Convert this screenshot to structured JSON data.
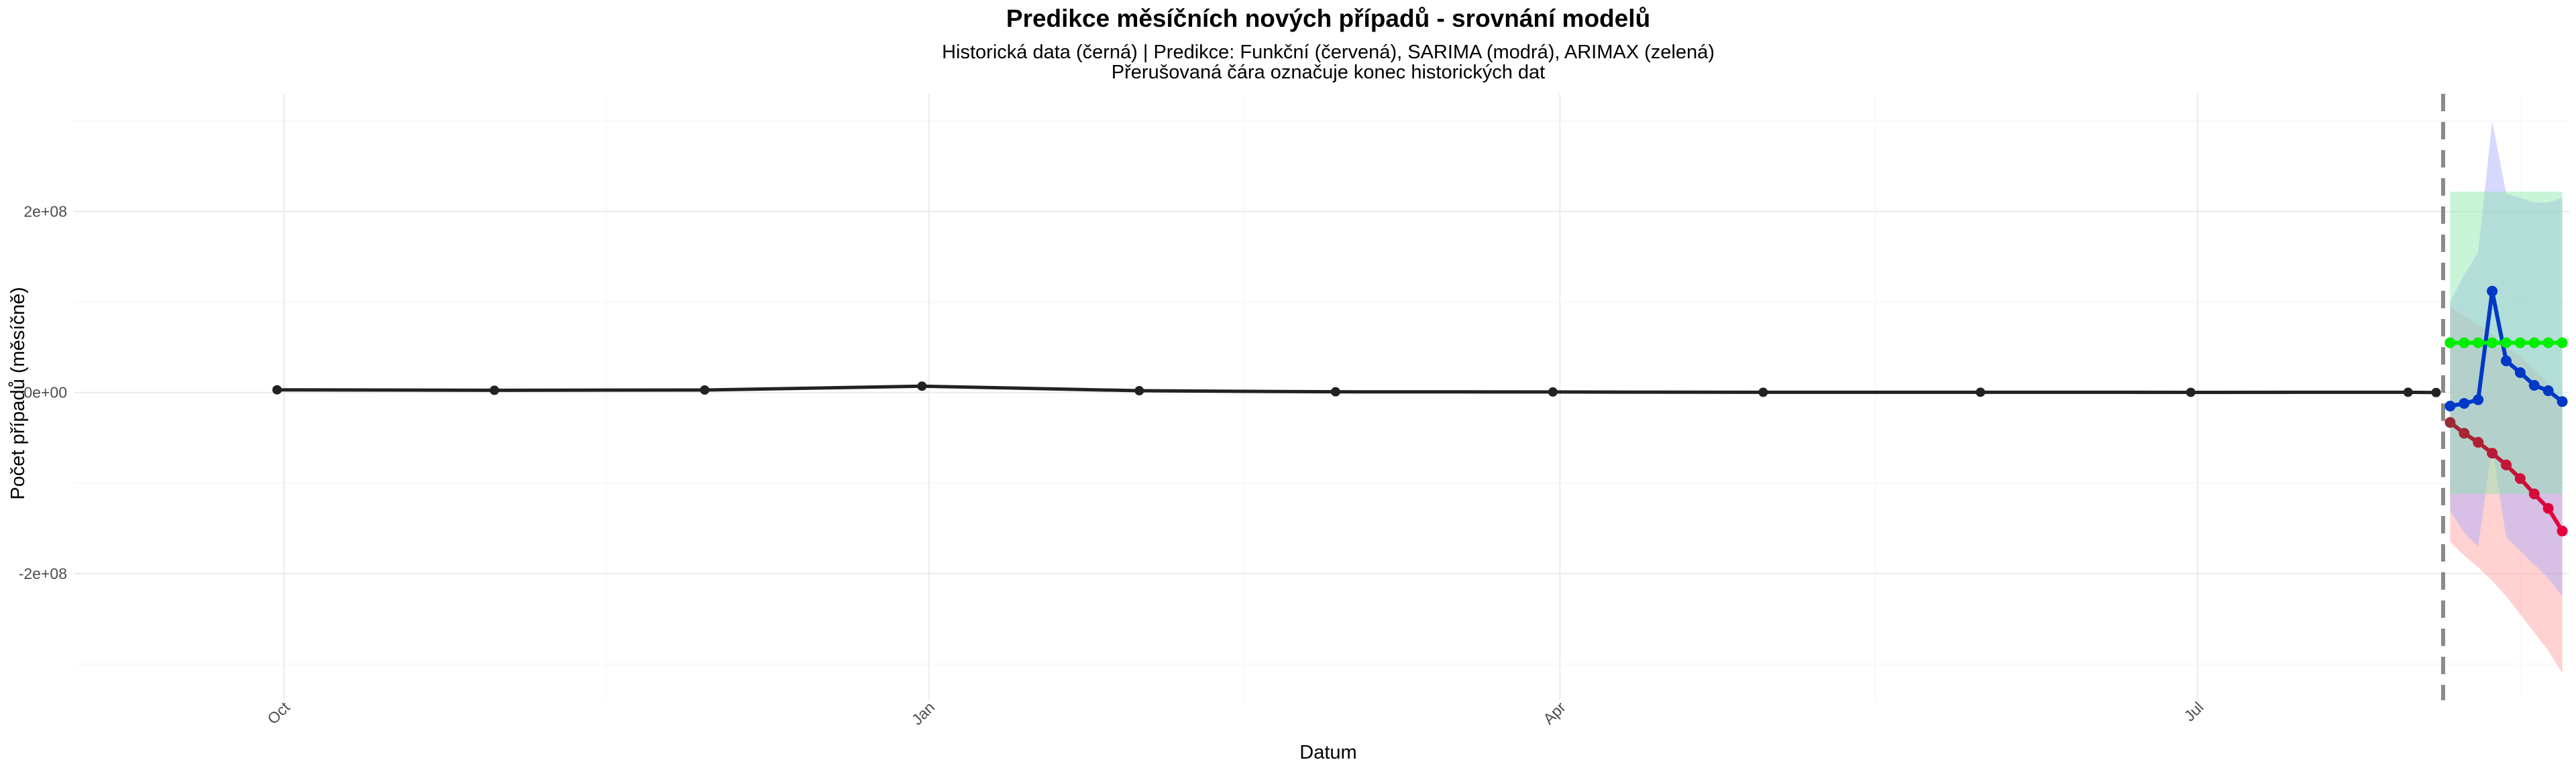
{
  "chart_data": {
    "type": "line",
    "title": "Predikce měsíčních nových případů - srovnání modelů",
    "subtitle_lines": [
      "Historická data (černá) | Predikce: Funkční (červená), SARIMA (modrá), ARIMAX (zelená)",
      "Přerušovaná čára označuje konec historických dat"
    ],
    "xlabel": "Datum",
    "ylabel": "Počet případů (měsíčně)",
    "x_ticks": [
      {
        "label": "Oct",
        "date": "2024-10-01"
      },
      {
        "label": "Jan",
        "date": "2025-01-01"
      },
      {
        "label": "Apr",
        "date": "2025-04-01"
      },
      {
        "label": "Jul",
        "date": "2025-07-01"
      }
    ],
    "y_ticks": [
      {
        "label": "-2e+08",
        "value": -200000000
      },
      {
        "label": "0e+00",
        "value": 0
      },
      {
        "label": "2e+08",
        "value": 200000000
      }
    ],
    "xlim": [
      "2024-09-01",
      "2025-08-23"
    ],
    "ylim": [
      -340000000,
      330000000
    ],
    "grid": true,
    "cutoff_date": "2025-08-05",
    "series": [
      {
        "key": "historical",
        "color": "#222222",
        "points": [
          {
            "x": "2024-09-30",
            "y": 3000000
          },
          {
            "x": "2024-10-31",
            "y": 2500000
          },
          {
            "x": "2024-11-30",
            "y": 2800000
          },
          {
            "x": "2024-12-31",
            "y": 7000000
          },
          {
            "x": "2025-01-31",
            "y": 2000000
          },
          {
            "x": "2025-02-28",
            "y": 800000
          },
          {
            "x": "2025-03-31",
            "y": 600000
          },
          {
            "x": "2025-04-30",
            "y": 300000
          },
          {
            "x": "2025-05-31",
            "y": 300000
          },
          {
            "x": "2025-06-30",
            "y": 200000
          },
          {
            "x": "2025-07-31",
            "y": 300000
          },
          {
            "x": "2025-08-04",
            "y": 0
          }
        ]
      },
      {
        "key": "funkcni",
        "color_start": "#9c2b33",
        "color_end": "#e8003c",
        "band_color": "#ff9999",
        "points": [
          {
            "x": "2025-08-06",
            "y": -33000000
          },
          {
            "x": "2025-08-08",
            "y": -45000000
          },
          {
            "x": "2025-08-10",
            "y": -55000000
          },
          {
            "x": "2025-08-12",
            "y": -67000000
          },
          {
            "x": "2025-08-14",
            "y": -80000000
          },
          {
            "x": "2025-08-16",
            "y": -95000000
          },
          {
            "x": "2025-08-18",
            "y": -112000000
          },
          {
            "x": "2025-08-20",
            "y": -128000000
          },
          {
            "x": "2025-08-22",
            "y": -153000000
          }
        ],
        "lower": [
          -165000000,
          -180000000,
          -193000000,
          -208000000,
          -225000000,
          -245000000,
          -265000000,
          -285000000,
          -310000000
        ],
        "upper": [
          95000000,
          85000000,
          75000000,
          65000000,
          50000000,
          40000000,
          25000000,
          10000000,
          -10000000
        ]
      },
      {
        "key": "sarima",
        "color": "#0038c8",
        "band_color": "#a8a8ff",
        "points": [
          {
            "x": "2025-08-06",
            "y": -15000000
          },
          {
            "x": "2025-08-08",
            "y": -12000000
          },
          {
            "x": "2025-08-10",
            "y": -8000000
          },
          {
            "x": "2025-08-12",
            "y": 112000000
          },
          {
            "x": "2025-08-14",
            "y": 35000000
          },
          {
            "x": "2025-08-16",
            "y": 22000000
          },
          {
            "x": "2025-08-18",
            "y": 8000000
          },
          {
            "x": "2025-08-20",
            "y": 2000000
          },
          {
            "x": "2025-08-22",
            "y": -10000000
          }
        ],
        "lower": [
          -130000000,
          -155000000,
          -170000000,
          -60000000,
          -160000000,
          -175000000,
          -190000000,
          -205000000,
          -225000000
        ],
        "upper": [
          100000000,
          130000000,
          155000000,
          300000000,
          220000000,
          215000000,
          210000000,
          210000000,
          215000000
        ]
      },
      {
        "key": "arimax",
        "color": "#00ee00",
        "band_color": "#88e6a8",
        "points": [
          {
            "x": "2025-08-06",
            "y": 55000000
          },
          {
            "x": "2025-08-08",
            "y": 55000000
          },
          {
            "x": "2025-08-10",
            "y": 55000000
          },
          {
            "x": "2025-08-12",
            "y": 55000000
          },
          {
            "x": "2025-08-14",
            "y": 55000000
          },
          {
            "x": "2025-08-16",
            "y": 55000000
          },
          {
            "x": "2025-08-18",
            "y": 55000000
          },
          {
            "x": "2025-08-20",
            "y": 55000000
          },
          {
            "x": "2025-08-22",
            "y": 55000000
          }
        ],
        "lower": [
          -112000000,
          -112000000,
          -112000000,
          -112000000,
          -112000000,
          -112000000,
          -112000000,
          -112000000,
          -112000000
        ],
        "upper": [
          222000000,
          222000000,
          222000000,
          222000000,
          222000000,
          222000000,
          222000000,
          222000000,
          222000000
        ]
      }
    ]
  }
}
